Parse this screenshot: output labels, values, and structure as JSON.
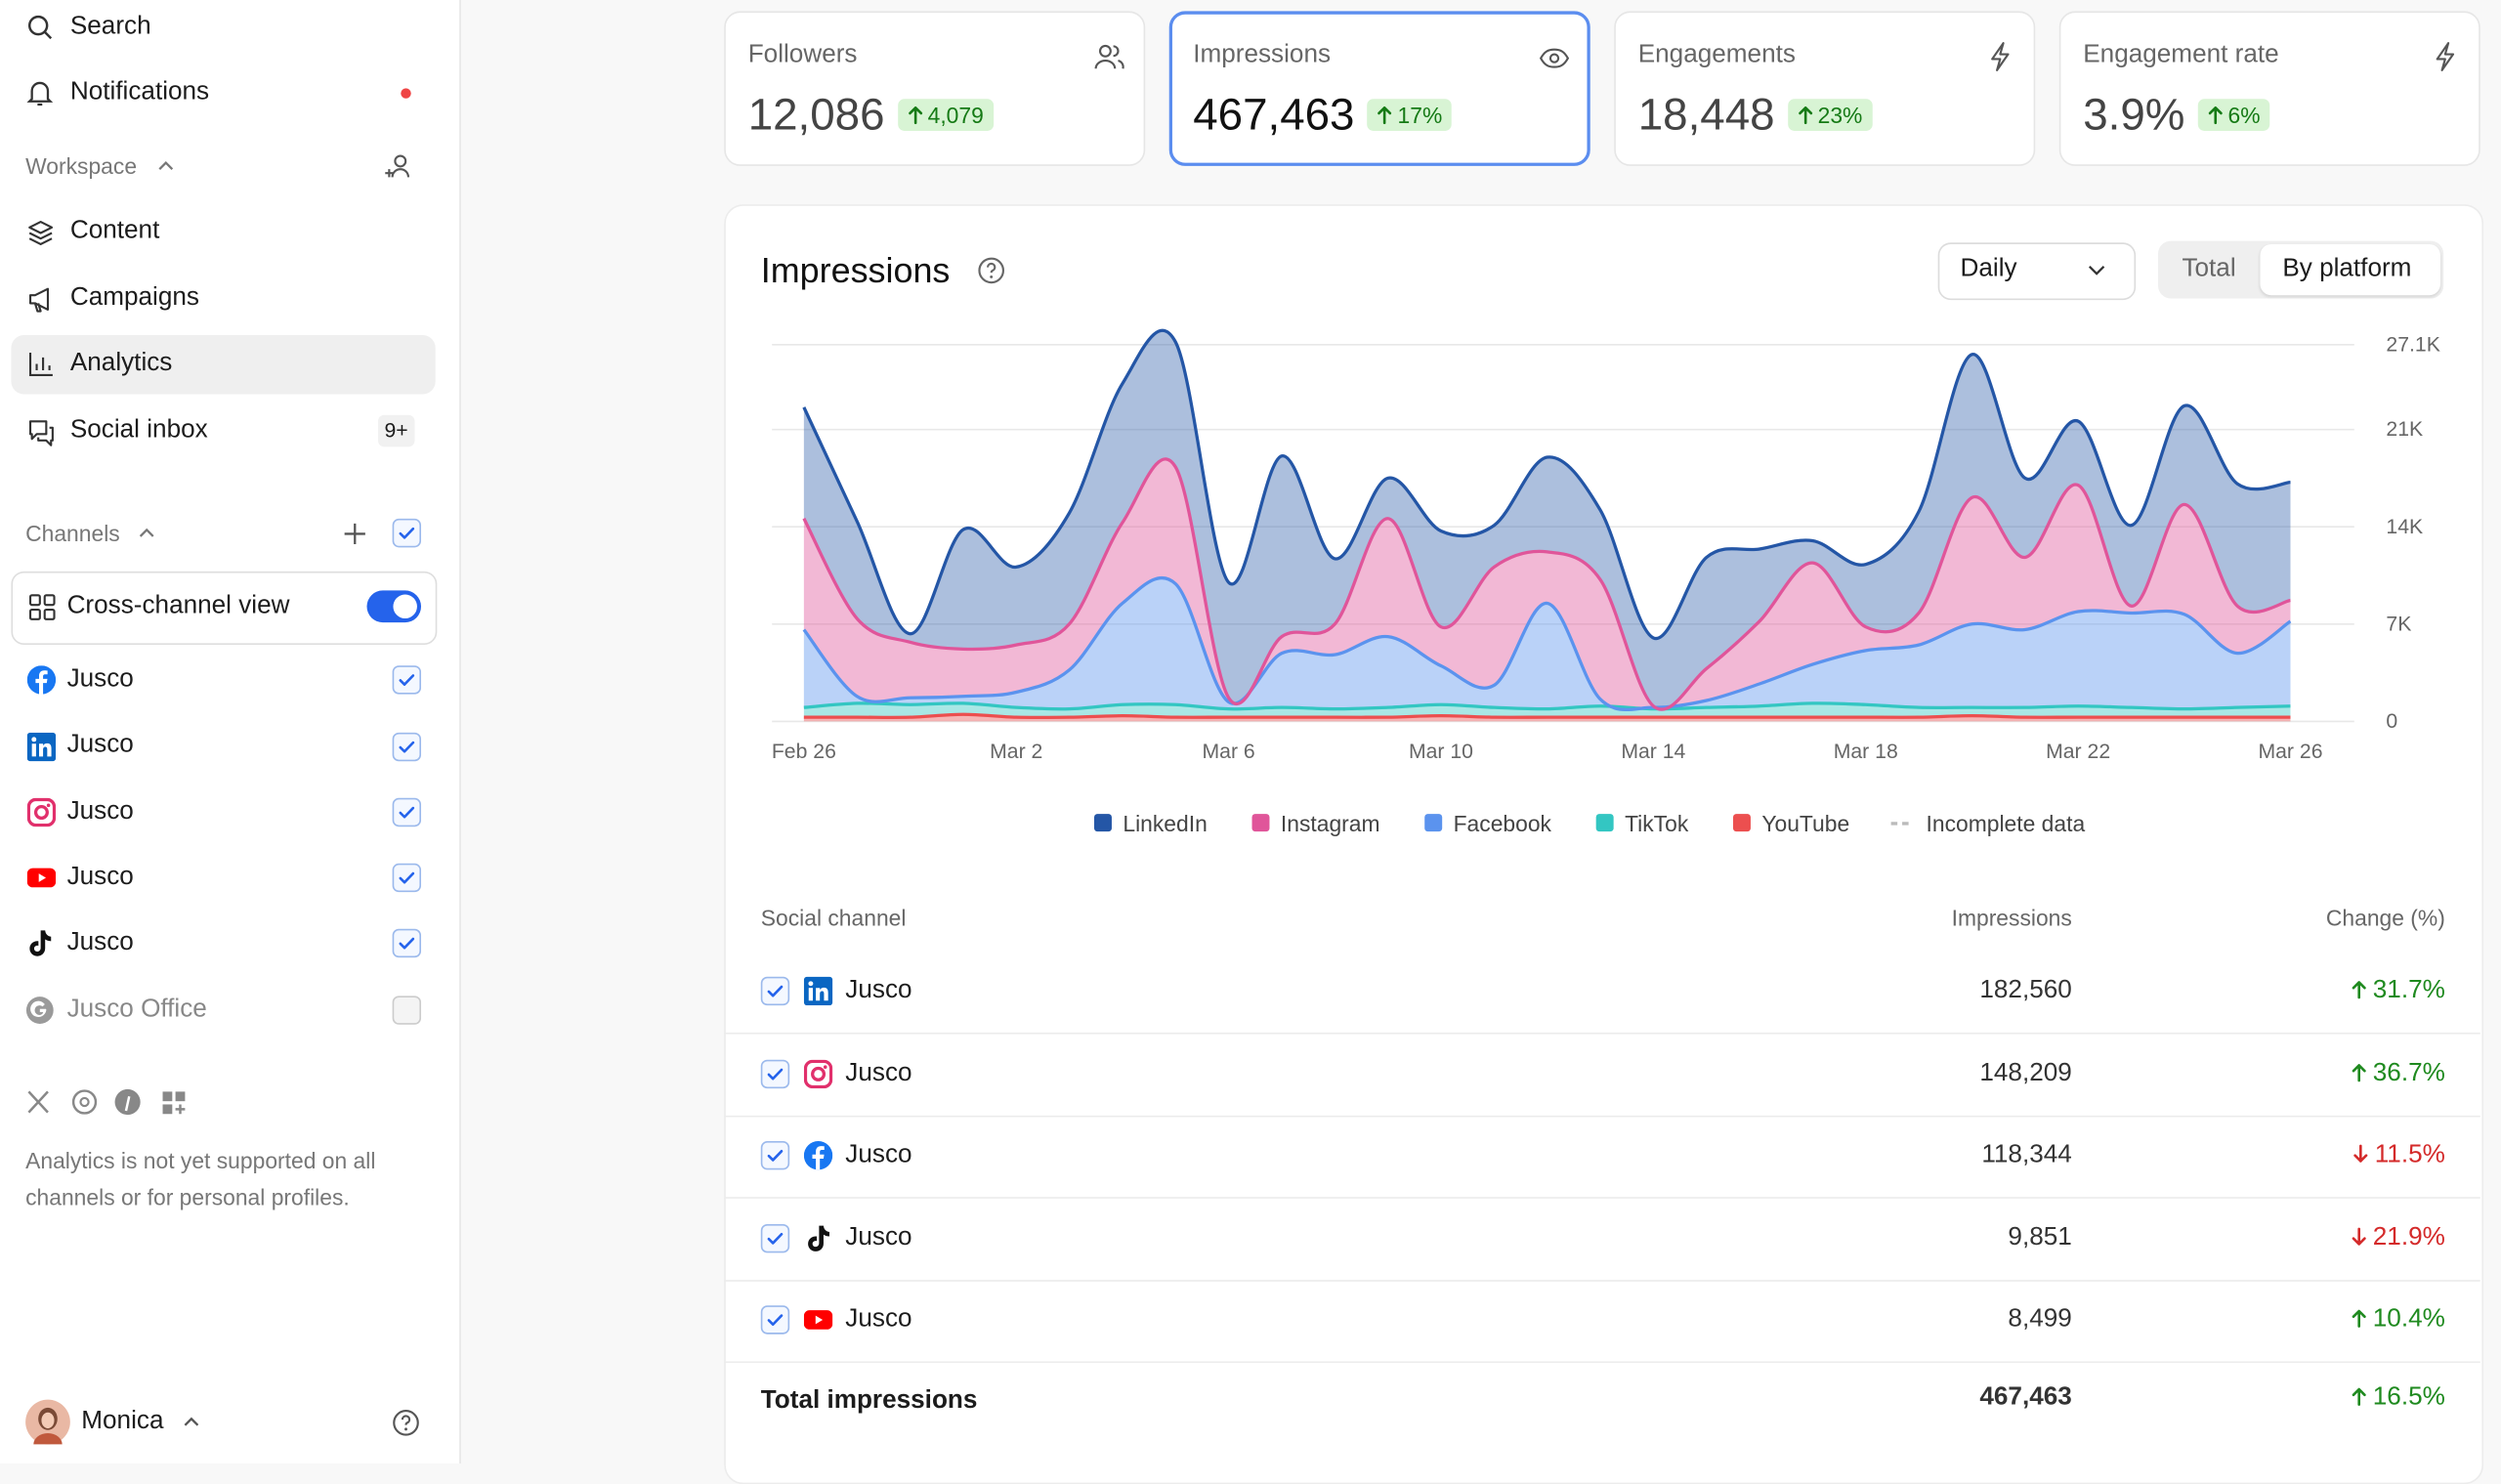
{
  "sidebar": {
    "search": "Search",
    "notifications": "Notifications",
    "workspace_label": "Workspace",
    "nav": [
      "Content",
      "Campaigns",
      "Analytics",
      "Social inbox"
    ],
    "inbox_badge": "9+",
    "channels_label": "Channels",
    "cross_channel": "Cross-channel view",
    "channels": [
      "Jusco",
      "Jusco",
      "Jusco",
      "Jusco",
      "Jusco",
      "Jusco Office"
    ],
    "note": "Analytics is not yet supported on all channels or for personal profiles.",
    "user": "Monica"
  },
  "metrics": [
    {
      "label": "Followers",
      "value": "12,086",
      "change": "4,079"
    },
    {
      "label": "Impressions",
      "value": "467,463",
      "change": "17%"
    },
    {
      "label": "Engagements",
      "value": "18,448",
      "change": "23%"
    },
    {
      "label": "Engagement rate",
      "value": "3.9%",
      "change": "6%"
    }
  ],
  "controls": {
    "period": "Daily",
    "views": [
      "Total",
      "By platform"
    ]
  },
  "chart_data": {
    "type": "stacked_area",
    "title": "Impressions",
    "categories": [
      "Feb 26",
      null,
      null,
      null,
      "Mar 2",
      null,
      null,
      null,
      "Mar 6",
      null,
      null,
      null,
      "Mar 10",
      null,
      null,
      null,
      "Mar 14",
      null,
      null,
      null,
      "Mar 18",
      null,
      null,
      null,
      "Mar 22",
      null,
      null,
      null,
      "Mar 26"
    ],
    "series": [
      {
        "name": "LinkedIn",
        "color": "#2456a6",
        "values": [
          8000,
          7000,
          600,
          8600,
          5600,
          8000,
          10000,
          9000,
          8300,
          13000,
          4700,
          2900,
          6900,
          3000,
          6800,
          5000,
          4900,
          8000,
          5200,
          1600,
          4500,
          7300,
          10300,
          5700,
          4600,
          5800,
          7100,
          8800,
          8500
        ]
      },
      {
        "name": "Instagram",
        "color": "#e0559a",
        "values": [
          8000,
          5600,
          4000,
          3400,
          3400,
          3300,
          5800,
          8400,
          300,
          1200,
          2200,
          8500,
          2800,
          8500,
          3700,
          8600,
          100,
          2300,
          4500,
          7300,
          1700,
          2300,
          9100,
          5200,
          9100,
          500,
          7900,
          3400,
          1500
        ]
      },
      {
        "name": "Facebook",
        "color": "#5b93ee",
        "values": [
          5600,
          500,
          500,
          500,
          1100,
          2800,
          7300,
          8700,
          500,
          3900,
          3900,
          5100,
          2800,
          1600,
          7600,
          500,
          100,
          500,
          1600,
          2800,
          3900,
          4500,
          6000,
          5600,
          6800,
          6800,
          6800,
          3900,
          6100
        ]
      },
      {
        "name": "TikTok",
        "color": "#33c6c2",
        "values": [
          700,
          1000,
          900,
          800,
          700,
          600,
          800,
          900,
          600,
          700,
          600,
          700,
          800,
          700,
          600,
          800,
          600,
          700,
          800,
          1000,
          900,
          700,
          600,
          700,
          800,
          700,
          600,
          700,
          800
        ]
      },
      {
        "name": "YouTube",
        "color": "#ec4f4f",
        "values": [
          300,
          300,
          300,
          500,
          300,
          300,
          400,
          300,
          300,
          300,
          300,
          300,
          400,
          300,
          300,
          300,
          300,
          300,
          300,
          300,
          300,
          300,
          400,
          300,
          300,
          300,
          300,
          300,
          300
        ]
      }
    ],
    "incomplete_label": "Incomplete data",
    "ylim": [
      0,
      27100
    ],
    "yticks": [
      0,
      {
        "value": 7000,
        "label": "7K"
      },
      {
        "value": 14000,
        "label": "14K"
      },
      {
        "value": 21000,
        "label": "21K"
      },
      {
        "value": 27100,
        "label": "27.1K"
      }
    ],
    "grid": true
  },
  "table": {
    "headers": [
      "Social channel",
      "Impressions",
      "Change (%)"
    ],
    "rows": [
      {
        "channel": "Jusco",
        "impressions": "182,560",
        "change": "31.7%",
        "trend": "up"
      },
      {
        "channel": "Jusco",
        "impressions": "148,209",
        "change": "36.7%",
        "trend": "up"
      },
      {
        "channel": "Jusco",
        "impressions": "118,344",
        "change": "11.5%",
        "trend": "down"
      },
      {
        "channel": "Jusco",
        "impressions": "9,851",
        "change": "21.9%",
        "trend": "down"
      },
      {
        "channel": "Jusco",
        "impressions": "8,499",
        "change": "10.4%",
        "trend": "up"
      }
    ],
    "total": {
      "label": "Total impressions",
      "impressions": "467,463",
      "change": "16.5%",
      "trend": "up"
    }
  }
}
